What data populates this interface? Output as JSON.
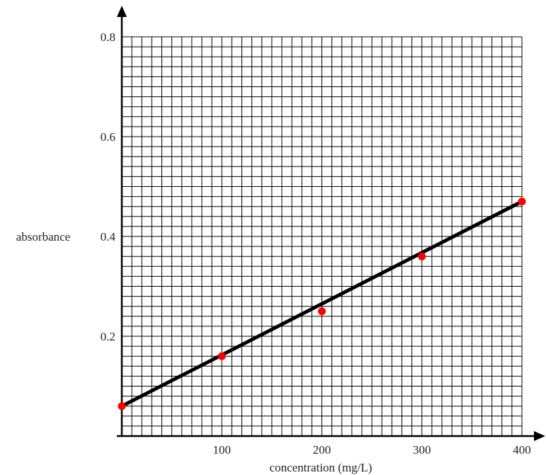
{
  "chart_data": {
    "type": "scatter",
    "xlabel": "concentration (mg/L)",
    "ylabel": "absorbance",
    "xlim": [
      0,
      400
    ],
    "ylim": [
      0,
      0.8
    ],
    "x_ticks": [
      100,
      200,
      300,
      400
    ],
    "y_ticks": [
      0.2,
      0.4,
      0.6,
      0.8
    ],
    "x_tick_labels": [
      "100",
      "200",
      "300",
      "400"
    ],
    "y_tick_labels": [
      "0.2",
      "0.4",
      "0.6",
      "0.8"
    ],
    "grid": true,
    "points": [
      {
        "x": 0,
        "y": 0.06
      },
      {
        "x": 100,
        "y": 0.16
      },
      {
        "x": 200,
        "y": 0.25
      },
      {
        "x": 300,
        "y": 0.36
      },
      {
        "x": 400,
        "y": 0.47
      }
    ],
    "trendline": {
      "x": [
        0,
        400
      ],
      "y": [
        0.06,
        0.47
      ]
    },
    "colors": {
      "points": "#ff0000",
      "line": "#000000",
      "grid": "#000000"
    }
  }
}
